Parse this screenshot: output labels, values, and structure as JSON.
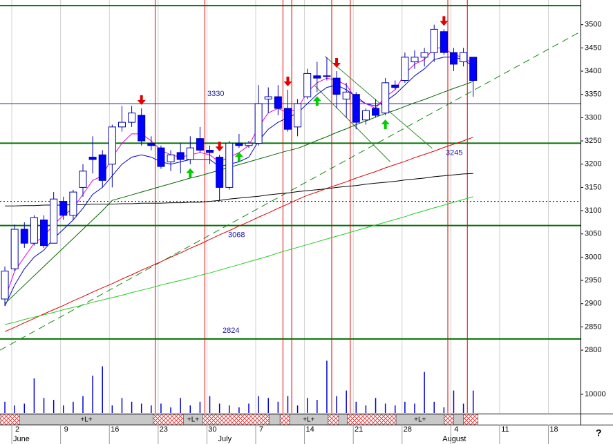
{
  "chart_data": {
    "type": "candlestick",
    "x": [
      0,
      1,
      2,
      3,
      4,
      5,
      6,
      7,
      8,
      9,
      10,
      11,
      12,
      13,
      14,
      15,
      16,
      17,
      18,
      19,
      20,
      21,
      22,
      23,
      24,
      25,
      26,
      27,
      28,
      29,
      30,
      31,
      32,
      33,
      34,
      35,
      36,
      37,
      38,
      39,
      40,
      41,
      42,
      43,
      44,
      45,
      46,
      47,
      48
    ],
    "open": [
      2910,
      2975,
      3060,
      3030,
      3080,
      3030,
      3120,
      3090,
      3150,
      3215,
      3220,
      3200,
      3280,
      3290,
      3305,
      3245,
      3235,
      3205,
      3225,
      3210,
      3255,
      3230,
      3215,
      3150,
      3245,
      3240,
      3245,
      3340,
      3345,
      3320,
      3280,
      3345,
      3390,
      3390,
      3385,
      3340,
      3350,
      3295,
      3320,
      3310,
      3370,
      3380,
      3420,
      3430,
      3440,
      3485,
      3440,
      3420,
      3430
    ],
    "high": [
      2980,
      3070,
      3075,
      3090,
      3090,
      3140,
      3130,
      3145,
      3200,
      3260,
      3230,
      3285,
      3325,
      3325,
      3320,
      3260,
      3240,
      3230,
      3245,
      3260,
      3280,
      3240,
      3220,
      3250,
      3265,
      3250,
      3370,
      3365,
      3370,
      3360,
      3340,
      3405,
      3420,
      3430,
      3400,
      3375,
      3355,
      3320,
      3340,
      3385,
      3380,
      3440,
      3445,
      3450,
      3500,
      3490,
      3450,
      3450,
      3430
    ],
    "low": [
      2895,
      2970,
      3020,
      3025,
      3020,
      3030,
      3080,
      3080,
      3130,
      3180,
      3150,
      3150,
      3270,
      3280,
      3240,
      3230,
      3190,
      3185,
      3180,
      3200,
      3225,
      3200,
      3120,
      3145,
      3235,
      3235,
      3240,
      3310,
      3305,
      3270,
      3260,
      3340,
      3355,
      3380,
      3320,
      3300,
      3275,
      3285,
      3300,
      3305,
      3360,
      3375,
      3405,
      3410,
      3420,
      3435,
      3400,
      3410,
      3345
    ],
    "close": [
      2970,
      3060,
      3030,
      3085,
      3025,
      3125,
      3090,
      3140,
      3185,
      3210,
      3165,
      3280,
      3290,
      3310,
      3250,
      3240,
      3195,
      3220,
      3210,
      3235,
      3230,
      3225,
      3150,
      3245,
      3240,
      3245,
      3330,
      3345,
      3320,
      3275,
      3330,
      3395,
      3385,
      3390,
      3350,
      3355,
      3290,
      3315,
      3305,
      3375,
      3365,
      3430,
      3430,
      3440,
      3490,
      3440,
      3415,
      3440,
      3380
    ],
    "up_color": "#ffffff",
    "down_color": "#0000ff",
    "candle_edge": "#0000aa",
    "series": [
      {
        "color": "#0000cc",
        "values": [
          2895,
          2940,
          2975,
          3000,
          3015,
          3040,
          3060,
          3080,
          3105,
          3135,
          3150,
          3175,
          3200,
          3215,
          3220,
          3215,
          3205,
          3200,
          3205,
          3210,
          3210,
          3210,
          3195,
          3200,
          3205,
          3215,
          3250,
          3275,
          3290,
          3300,
          3310,
          3330,
          3350,
          3365,
          3370,
          3360,
          3345,
          3330,
          3325,
          3335,
          3350,
          3370,
          3390,
          3405,
          3425,
          3430,
          3430,
          3425,
          3410
        ]
      },
      {
        "color": "#dd00dd",
        "values": [
          2910,
          2970,
          3000,
          3030,
          3045,
          3070,
          3090,
          3105,
          3135,
          3165,
          3175,
          3215,
          3245,
          3265,
          3265,
          3250,
          3230,
          3220,
          3215,
          3220,
          3225,
          3220,
          3205,
          3215,
          3225,
          3240,
          3280,
          3310,
          3320,
          3310,
          3320,
          3355,
          3375,
          3385,
          3380,
          3370,
          3340,
          3330,
          3320,
          3345,
          3360,
          3395,
          3415,
          3425,
          3450,
          3450,
          3435,
          3430,
          3415
        ]
      },
      {
        "color": "#006400",
        "values": [
          2900,
          2920,
          2940,
          2960,
          2980,
          3000,
          3020,
          3040,
          3060,
          3080,
          3100,
          3122,
          3128,
          3134,
          3140,
          3146,
          3152,
          3158,
          3164,
          3170,
          3175,
          3181,
          3187,
          3193,
          3199,
          3205,
          3211,
          3217,
          3223,
          3229,
          3234,
          3242,
          3251,
          3259,
          3268,
          3276,
          3285,
          3293,
          3301,
          3309,
          3316,
          3324,
          3332,
          3339,
          3347,
          3355,
          3363,
          3370,
          3378
        ]
      },
      {
        "color": "#dd0000",
        "values": [
          2840,
          2849,
          2859,
          2868,
          2878,
          2887,
          2896,
          2906,
          2915,
          2925,
          2934,
          2943,
          2953,
          2962,
          2972,
          2981,
          2990,
          3000,
          3009,
          3019,
          3028,
          3038,
          3048,
          3057,
          3067,
          3076,
          3086,
          3095,
          3105,
          3114,
          3124,
          3133,
          3140,
          3148,
          3155,
          3162,
          3170,
          3177,
          3184,
          3192,
          3199,
          3206,
          3214,
          3221,
          3228,
          3236,
          3243,
          3250,
          3258
        ]
      },
      {
        "color": "#22cc22",
        "values": [
          2855,
          2860,
          2866,
          2871,
          2876,
          2881,
          2887,
          2892,
          2897,
          2903,
          2908,
          2913,
          2918,
          2924,
          2929,
          2934,
          2940,
          2945,
          2950,
          2955,
          2961,
          2966,
          2972,
          2978,
          2984,
          2990,
          2996,
          3002,
          3009,
          3015,
          3021,
          3027,
          3033,
          3039,
          3045,
          3051,
          3057,
          3063,
          3069,
          3075,
          3081,
          3087,
          3094,
          3100,
          3106,
          3112,
          3118,
          3124,
          3130
        ]
      },
      {
        "color": "#000000",
        "values": [
          3110,
          3110,
          3111,
          3111,
          3112,
          3112,
          3112,
          3113,
          3113,
          3114,
          3114,
          3114,
          3115,
          3115,
          3116,
          3116,
          3116,
          3117,
          3117,
          3118,
          3118,
          3120,
          3122,
          3125,
          3127,
          3129,
          3131,
          3134,
          3136,
          3138,
          3141,
          3143,
          3145,
          3147,
          3150,
          3152,
          3154,
          3157,
          3159,
          3161,
          3163,
          3166,
          3168,
          3170,
          3173,
          3175,
          3177,
          3179,
          3180
        ]
      }
    ],
    "volume": {
      "color": "#0000cc",
      "ylim": [
        0,
        100000
      ],
      "yticks": [
        10000
      ],
      "values": [
        6000,
        4000,
        5000,
        18500,
        8000,
        7000,
        4000,
        6000,
        9000,
        20000,
        25000,
        4000,
        8000,
        6000,
        5000,
        4000,
        5000,
        3000,
        8000,
        4000,
        6000,
        9000,
        5000,
        4000,
        3000,
        5000,
        9000,
        8000,
        6000,
        9000,
        4000,
        8000,
        7000,
        28000,
        9000,
        12000,
        6000,
        4000,
        8000,
        5000,
        4000,
        6000,
        5000,
        22000,
        6000,
        3000,
        12000,
        5000,
        12000
      ]
    },
    "xlim": [
      -0.5,
      59
    ],
    "ylim": [
      2665,
      3553
    ],
    "yticks": [
      2800,
      2850,
      2900,
      2950,
      3000,
      3050,
      3100,
      3150,
      3200,
      3250,
      3300,
      3350,
      3400,
      3450,
      3500
    ],
    "xticks": [
      {
        "value": 0,
        "label": "2"
      },
      {
        "value": 5,
        "label": "9"
      },
      {
        "value": 10,
        "label": "16"
      },
      {
        "value": 15,
        "label": "23"
      },
      {
        "value": 20,
        "label": "30"
      },
      {
        "value": 25,
        "label": "7"
      },
      {
        "value": 30,
        "label": "14"
      },
      {
        "value": 35,
        "label": "21"
      },
      {
        "value": 40,
        "label": "28"
      },
      {
        "value": 45,
        "label": "4"
      },
      {
        "value": 50,
        "label": "11"
      },
      {
        "value": 55,
        "label": "18"
      }
    ],
    "month_ticks": [
      {
        "value": 0,
        "label": "June"
      },
      {
        "value": 21,
        "label": "July"
      },
      {
        "value": 44,
        "label": "August"
      }
    ],
    "levels": [
      {
        "value": 3541,
        "color": "#007000",
        "show_label": false
      },
      {
        "value": 3330,
        "color": "#2020a0",
        "show_label": true
      },
      {
        "value": 3245,
        "color": "#007000",
        "show_label": true
      },
      {
        "value": 3120,
        "color": "#000000",
        "show_label": false,
        "style": "dotted"
      },
      {
        "value": 3068,
        "color": "#007000",
        "show_label": true
      },
      {
        "value": 2824,
        "color": "#007000",
        "show_label": true
      }
    ],
    "event_lines": [
      15.4,
      20.5,
      28.5,
      29.4,
      33.5,
      35.4,
      45.4,
      47.4
    ],
    "sell_signals": [
      14,
      22,
      29,
      34,
      45
    ],
    "buy_signals": [
      19,
      24,
      32,
      39
    ],
    "trendlines": [
      {
        "from": [
          -0.5,
          2800
        ],
        "to": [
          59,
          3485
        ],
        "color": "#118811",
        "style": "dashed"
      },
      {
        "from": [
          31.7,
          3370
        ],
        "to": [
          39.5,
          3205
        ],
        "color": "#338833",
        "style": "solid"
      },
      {
        "from": [
          32.8,
          3432
        ],
        "to": [
          43.8,
          3234
        ],
        "color": "#338833",
        "style": "solid"
      }
    ],
    "signal_bar": [
      {
        "from": -0.5,
        "to": 1.5,
        "kind": "hatch"
      },
      {
        "from": 1.5,
        "to": 15.2,
        "kind": "flat",
        "label": "+L+"
      },
      {
        "from": 15.2,
        "to": 18.3,
        "kind": "hatch"
      },
      {
        "from": 18.3,
        "to": 20.3,
        "kind": "flat",
        "label": "+L+"
      },
      {
        "from": 20.3,
        "to": 27.1,
        "kind": "hatch"
      },
      {
        "from": 27.1,
        "to": 28.2,
        "kind": "flat"
      },
      {
        "from": 28.2,
        "to": 29.2,
        "kind": "hatch"
      },
      {
        "from": 29.2,
        "to": 33.1,
        "kind": "flat",
        "label": "+L+"
      },
      {
        "from": 33.1,
        "to": 34.2,
        "kind": "hatch"
      },
      {
        "from": 34.2,
        "to": 35.1,
        "kind": "flat"
      },
      {
        "from": 35.1,
        "to": 40.1,
        "kind": "hatch"
      },
      {
        "from": 40.1,
        "to": 45.0,
        "kind": "flat",
        "label": "+L+"
      },
      {
        "from": 45.0,
        "to": 46.0,
        "kind": "hatch"
      },
      {
        "from": 46.0,
        "to": 47.0,
        "kind": "flat"
      },
      {
        "from": 47.0,
        "to": 48.5,
        "kind": "hatch"
      }
    ],
    "help_label": "?"
  }
}
